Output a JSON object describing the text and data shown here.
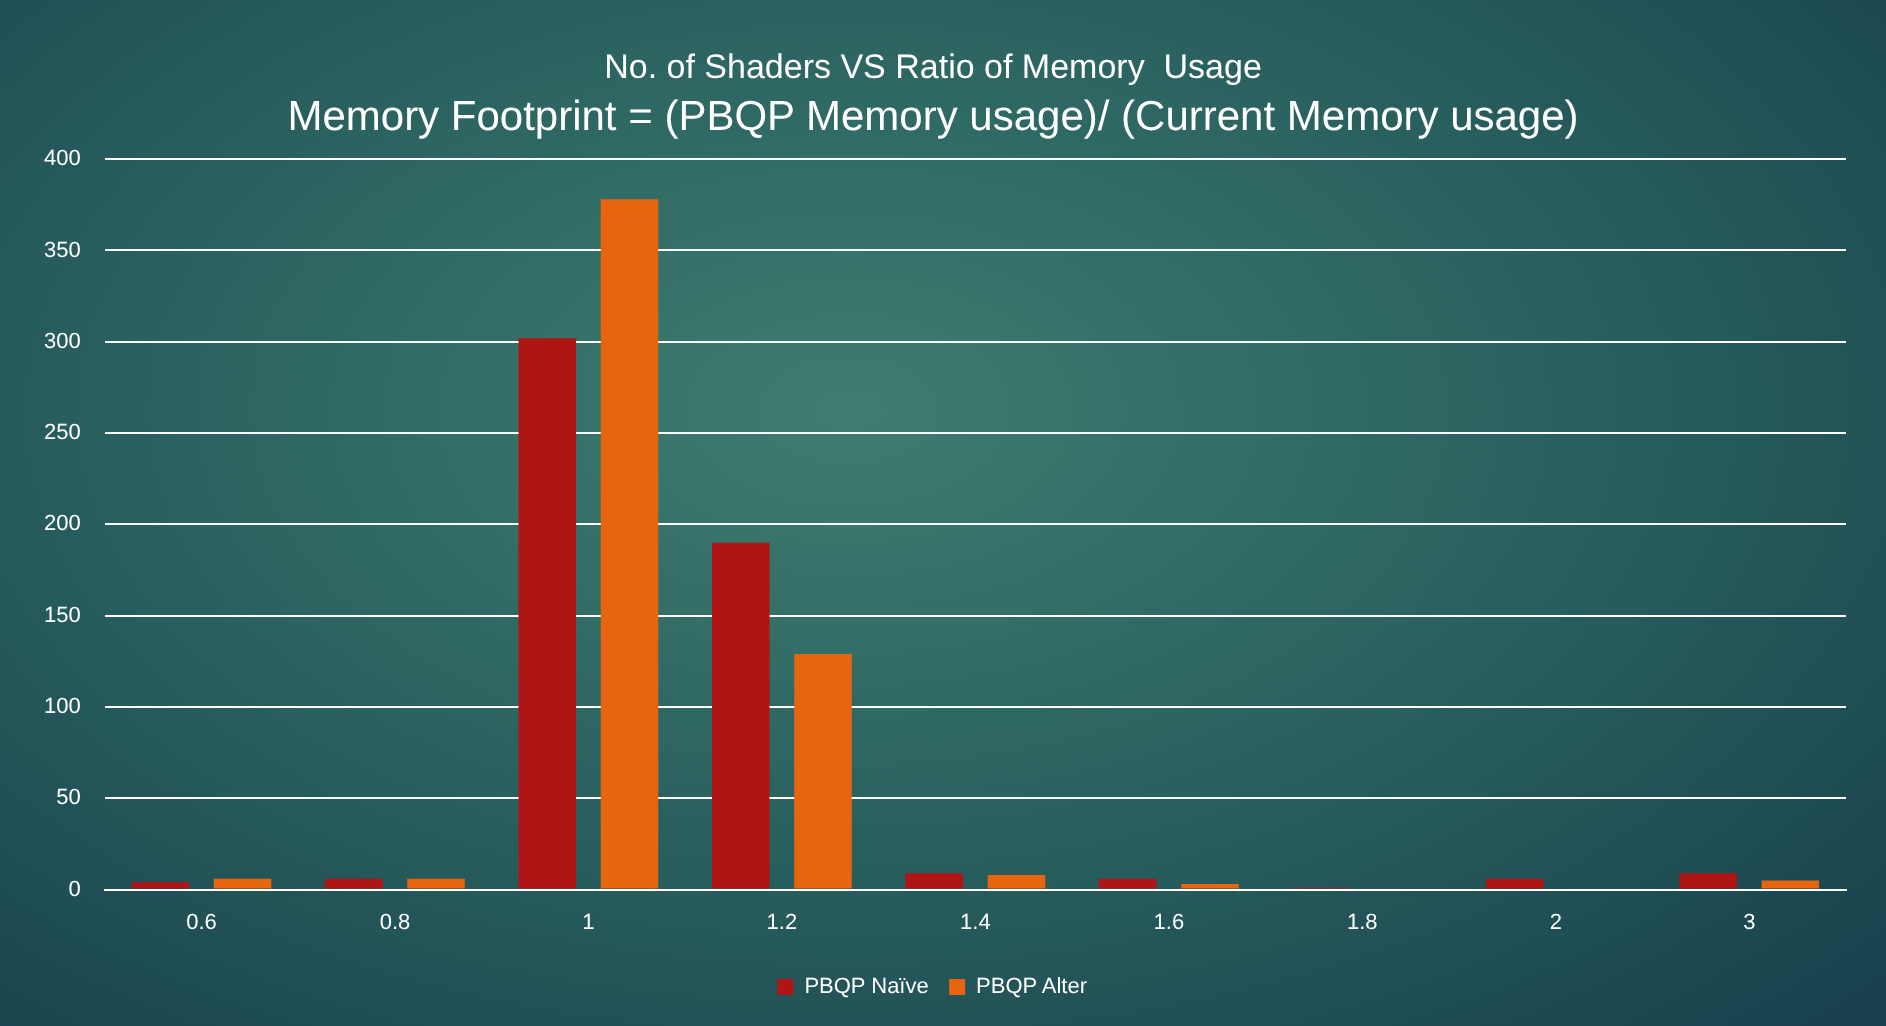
{
  "chart_data": {
    "type": "bar",
    "title": "No. of Shaders VS Ratio of Memory  Usage",
    "subtitle": "Memory Footprint = (PBQP Memory usage)/ (Current Memory usage)",
    "categories": [
      "0.6",
      "0.8",
      "1",
      "1.2",
      "1.4",
      "1.6",
      "1.8",
      "2",
      "3"
    ],
    "series": [
      {
        "name": "PBQP Naïve",
        "color": "#b01515",
        "values": [
          4,
          6,
          302,
          190,
          9,
          6,
          1,
          6,
          9
        ]
      },
      {
        "name": "PBQP Alter",
        "color": "#e8650f",
        "values": [
          6,
          6,
          378,
          129,
          8,
          3,
          0,
          0,
          5
        ]
      }
    ],
    "ylim": [
      0,
      400
    ],
    "yticks": [
      0,
      50,
      100,
      150,
      200,
      250,
      300,
      350,
      400
    ],
    "grid": "y",
    "legend": "bottom"
  }
}
